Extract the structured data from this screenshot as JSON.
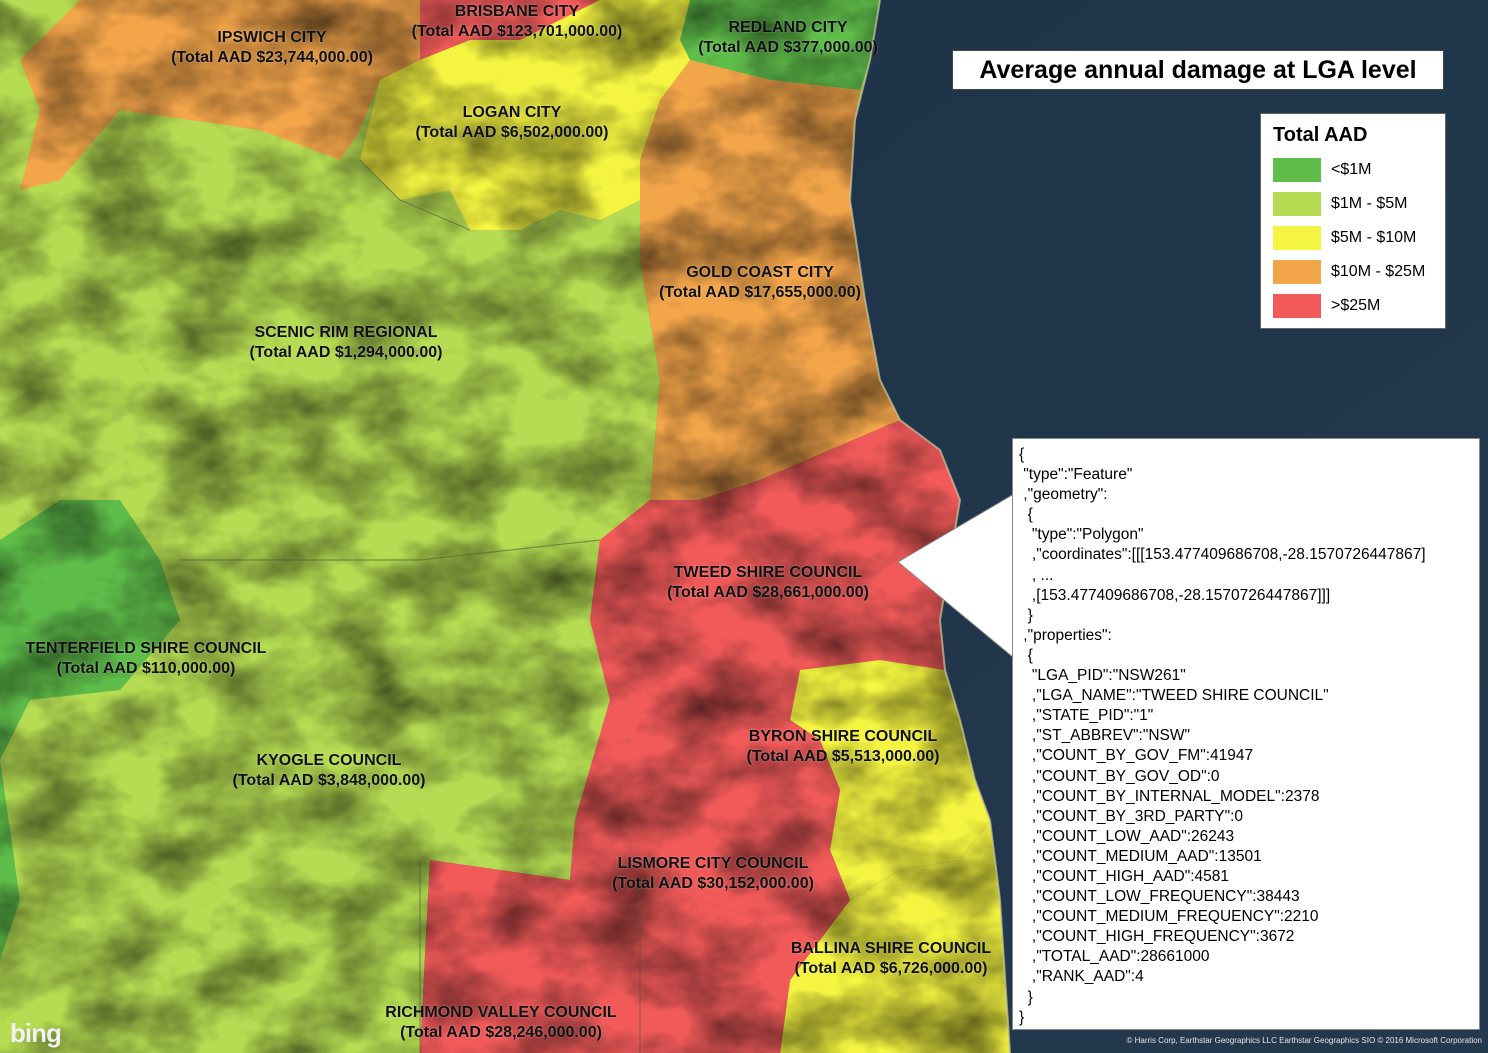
{
  "title": "Average annual damage at LGA level",
  "legend": {
    "title": "Total AAD",
    "classes": [
      {
        "label": "<$1M",
        "color": "#5fbe4a"
      },
      {
        "label": "$1M - $5M",
        "color": "#b5dc52"
      },
      {
        "label": "$5M - $10M",
        "color": "#f4f441"
      },
      {
        "label": "$10M - $25M",
        "color": "#f3a54a"
      },
      {
        "label": ">$25M",
        "color": "#f25a5a"
      }
    ]
  },
  "lgas": [
    {
      "id": "ipswich",
      "name": "IPSWICH CITY",
      "aad": "(Total AAD $23,744,000.00)",
      "class": 3
    },
    {
      "id": "brisbane",
      "name": "BRISBANE CITY",
      "aad": "(Total AAD $123,701,000.00)",
      "class": 4
    },
    {
      "id": "redland",
      "name": "REDLAND CITY",
      "aad": "(Total AAD $377,000.00)",
      "class": 0
    },
    {
      "id": "logan",
      "name": "LOGAN CITY",
      "aad": "(Total AAD $6,502,000.00)",
      "class": 2
    },
    {
      "id": "gold-coast",
      "name": "GOLD COAST CITY",
      "aad": "(Total AAD $17,655,000.00)",
      "class": 3
    },
    {
      "id": "scenic-rim",
      "name": "SCENIC RIM REGIONAL",
      "aad": "(Total AAD $1,294,000.00)",
      "class": 1
    },
    {
      "id": "tweed",
      "name": "TWEED SHIRE COUNCIL",
      "aad": "(Total AAD $28,661,000.00)",
      "class": 4
    },
    {
      "id": "tenterfield",
      "name": "TENTERFIELD SHIRE COUNCIL",
      "aad": "(Total AAD $110,000.00)",
      "class": 0
    },
    {
      "id": "kyogle",
      "name": "KYOGLE COUNCIL",
      "aad": "(Total AAD $3,848,000.00)",
      "class": 1
    },
    {
      "id": "byron",
      "name": "BYRON SHIRE COUNCIL",
      "aad": "(Total AAD $5,513,000.00)",
      "class": 2
    },
    {
      "id": "lismore",
      "name": "LISMORE CITY COUNCIL",
      "aad": "(Total AAD $30,152,000.00)",
      "class": 4
    },
    {
      "id": "ballina",
      "name": "BALLINA SHIRE COUNCIL",
      "aad": "(Total AAD $6,726,000.00)",
      "class": 2
    },
    {
      "id": "richmond-valley",
      "name": "RICHMOND VALLEY COUNCIL",
      "aad": "(Total AAD $28,246,000.00)",
      "class": 4
    }
  ],
  "feature_popup": {
    "lines": [
      "{",
      " \"type\":\"Feature\"",
      " ,\"geometry\":",
      "  {",
      "   \"type\":\"Polygon\"",
      "   ,\"coordinates\":[[[153.477409686708,-28.1570726447867]",
      "   , ...",
      "   ,[153.477409686708,-28.1570726447867]]]",
      "  }",
      " ,\"properties\":",
      "  {",
      "   \"LGA_PID\":\"NSW261\"",
      "   ,\"LGA_NAME\":\"TWEED SHIRE COUNCIL\"",
      "   ,\"STATE_PID\":\"1\"",
      "   ,\"ST_ABBREV\":\"NSW\"",
      "   ,\"COUNT_BY_GOV_FM\":41947",
      "   ,\"COUNT_BY_GOV_OD\":0",
      "   ,\"COUNT_BY_INTERNAL_MODEL\":2378",
      "   ,\"COUNT_BY_3RD_PARTY\":0",
      "   ,\"COUNT_LOW_AAD\":26243",
      "   ,\"COUNT_MEDIUM_AAD\":13501",
      "   ,\"COUNT_HIGH_AAD\":4581",
      "   ,\"COUNT_LOW_FREQUENCY\":38443",
      "   ,\"COUNT_MEDIUM_FREQUENCY\":2210",
      "   ,\"COUNT_HIGH_FREQUENCY\":3672",
      "   ,\"TOTAL_AAD\":28661000",
      "   ,\"RANK_AAD\":4",
      "  }",
      "}"
    ]
  },
  "attribution": "© Harris Corp, Earthstar Geographics LLC Earthstar Geographics SIO © 2016 Microsoft Corporation",
  "logo": "bing"
}
